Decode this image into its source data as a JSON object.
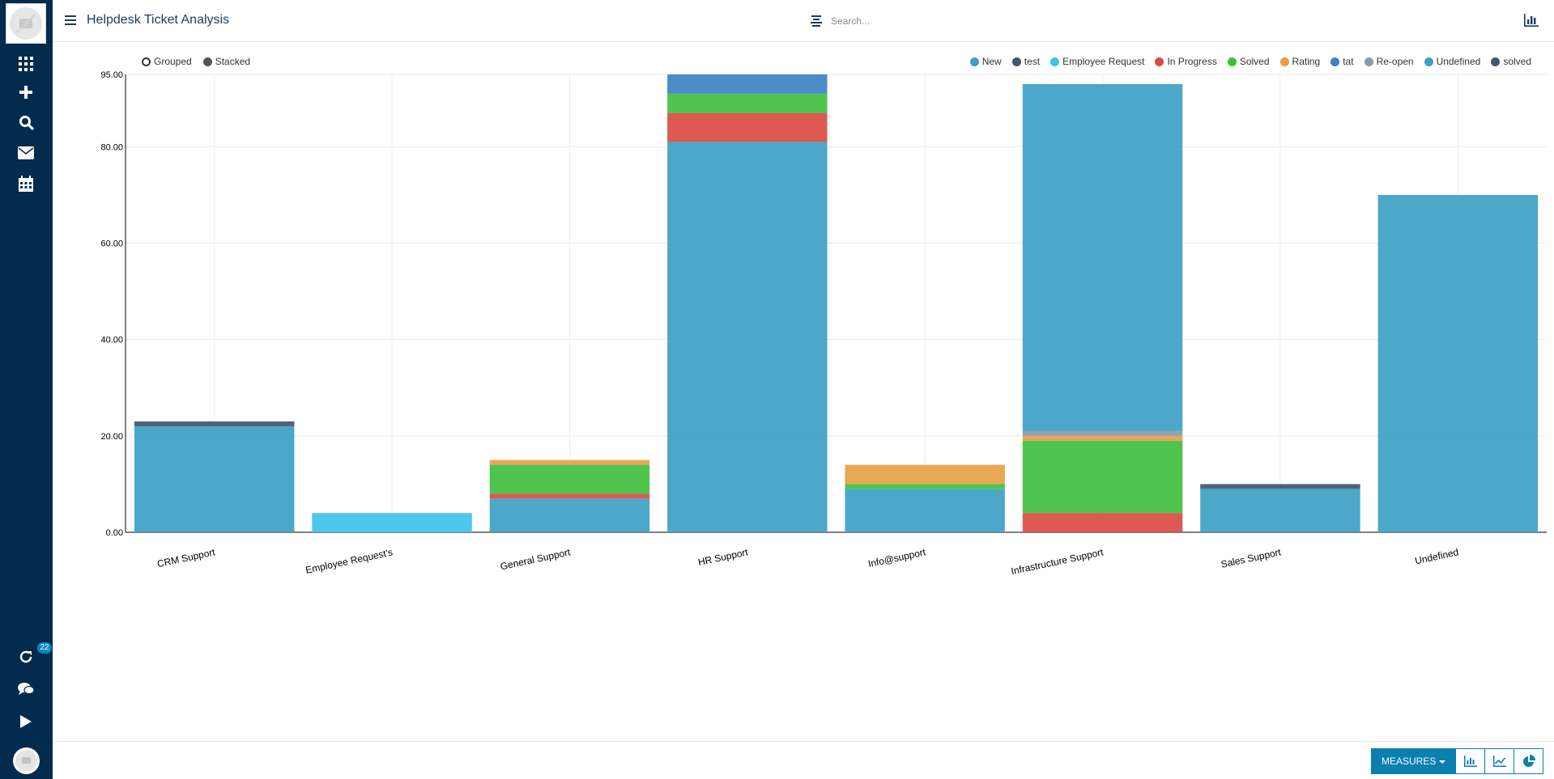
{
  "app": {
    "title": "Helpdesk Ticket Analysis"
  },
  "search": {
    "placeholder": "Search..."
  },
  "sidebar": {
    "badge_count": "22",
    "icons": [
      "apps-grid-icon",
      "plus-icon",
      "search-icon",
      "envelope-icon",
      "calendar-icon",
      "refresh-icon",
      "chat-icon",
      "play-icon"
    ]
  },
  "controls": {
    "grouped": "Grouped",
    "stacked": "Stacked",
    "mode": "Stacked"
  },
  "bottom": {
    "measures_label": "MEASURES"
  },
  "colors": {
    "New": "#3e9fc4",
    "test": "#42566d",
    "Employee Request": "#3ec3ea",
    "In Progress": "#d94b45",
    "Solved": "#40bf40",
    "Rating": "#e89f45",
    "tat": "#3e81c4",
    "Re-open": "#8a9aa8",
    "Undefined": "#3e9fc4",
    "solved": "#42566d",
    "accent": "#0a7fb0",
    "sidebar": "#032b4e"
  },
  "chart_data": {
    "type": "bar",
    "stacked": true,
    "categories": [
      "CRM Support",
      "Employee Request's",
      "General Support",
      "HR Support",
      "Info@support",
      "Infrastructure Support",
      "Sales Support",
      "Undefined"
    ],
    "y_ticks": [
      "0.00",
      "20.00",
      "40.00",
      "60.00",
      "80.00",
      "95.00"
    ],
    "ylim": [
      0,
      95
    ],
    "grid": true,
    "legend_position": "top-right",
    "series": [
      {
        "name": "New",
        "values": [
          22,
          0,
          7,
          81,
          9,
          0,
          9,
          0
        ]
      },
      {
        "name": "test",
        "values": [
          1,
          0,
          0,
          0,
          0,
          0,
          1,
          0
        ]
      },
      {
        "name": "Employee Request",
        "values": [
          0,
          4,
          0,
          0,
          0,
          0,
          0,
          0
        ]
      },
      {
        "name": "In Progress",
        "values": [
          0,
          0,
          1,
          6,
          0,
          4,
          0,
          0
        ]
      },
      {
        "name": "Solved",
        "values": [
          0,
          0,
          6,
          4,
          1,
          15,
          0,
          0
        ]
      },
      {
        "name": "Rating",
        "values": [
          0,
          0,
          1,
          0,
          4,
          1,
          0,
          0
        ]
      },
      {
        "name": "tat",
        "values": [
          0,
          0,
          0,
          4,
          0,
          0,
          0,
          0
        ]
      },
      {
        "name": "Re-open",
        "values": [
          0,
          0,
          0,
          0,
          0,
          1,
          0,
          0
        ]
      },
      {
        "name": "Undefined",
        "values": [
          0,
          0,
          0,
          0,
          0,
          72,
          0,
          70
        ]
      },
      {
        "name": "solved",
        "values": [
          0,
          0,
          0,
          0,
          0,
          0,
          0,
          0
        ]
      }
    ]
  }
}
